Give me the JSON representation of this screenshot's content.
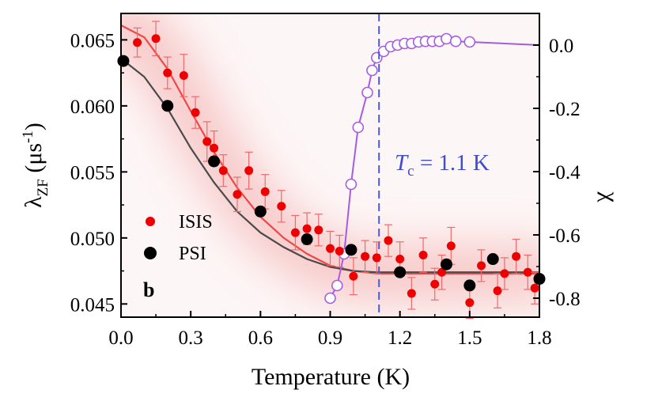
{
  "chart_data": {
    "type": "scatter",
    "title": "",
    "xlabel": "Temperature (K)",
    "ylabel_left": {
      "main": "λ",
      "sub": "ZF",
      "rest": " (μs",
      "sup": "-1",
      "close": ")"
    },
    "ylabel_right": "χ",
    "panel_label": "b",
    "xlim": [
      0.0,
      1.8
    ],
    "ylim_left": [
      0.044,
      0.067
    ],
    "ylim_right": [
      -0.86,
      0.1
    ],
    "x_ticks": [
      "0.0",
      "0.3",
      "0.6",
      "0.9",
      "1.2",
      "1.5",
      "1.8"
    ],
    "x_tick_values": [
      0.0,
      0.3,
      0.6,
      0.9,
      1.2,
      1.5,
      1.8
    ],
    "y_left_ticks": [
      "0.045",
      "0.050",
      "0.055",
      "0.060",
      "0.065"
    ],
    "y_left_tick_values": [
      0.045,
      0.05,
      0.055,
      0.06,
      0.065
    ],
    "y_right_ticks": [
      "0.0",
      "-0.2",
      "-0.4",
      "-0.6",
      "-0.8"
    ],
    "y_right_tick_values": [
      0.0,
      -0.2,
      -0.4,
      -0.6,
      -0.8
    ],
    "annotation": {
      "T": "T",
      "sub": "c",
      "text": " = 1.1 K",
      "x": 1.11
    },
    "legend": [
      {
        "label": "ISIS",
        "color": "#ee0000",
        "marker": "small-filled-circle"
      },
      {
        "label": "PSI",
        "color": "#000000",
        "marker": "large-filled-circle"
      }
    ],
    "series": [
      {
        "name": "ISIS",
        "axis": "left",
        "color": "#ee0000",
        "points": [
          {
            "x": 0.07,
            "y": 0.0648,
            "err": 0.0011
          },
          {
            "x": 0.15,
            "y": 0.0651,
            "err": 0.0013
          },
          {
            "x": 0.2,
            "y": 0.0625,
            "err": 0.0012
          },
          {
            "x": 0.27,
            "y": 0.0623,
            "err": 0.0016
          },
          {
            "x": 0.32,
            "y": 0.0595,
            "err": 0.0012
          },
          {
            "x": 0.37,
            "y": 0.0573,
            "err": 0.0015
          },
          {
            "x": 0.4,
            "y": 0.0568,
            "err": 0.0013
          },
          {
            "x": 0.44,
            "y": 0.0551,
            "err": 0.0012
          },
          {
            "x": 0.5,
            "y": 0.0533,
            "err": 0.0013
          },
          {
            "x": 0.55,
            "y": 0.0551,
            "err": 0.0014
          },
          {
            "x": 0.62,
            "y": 0.0535,
            "err": 0.0013
          },
          {
            "x": 0.69,
            "y": 0.0524,
            "err": 0.0012
          },
          {
            "x": 0.75,
            "y": 0.0504,
            "err": 0.0013
          },
          {
            "x": 0.8,
            "y": 0.0507,
            "err": 0.0012
          },
          {
            "x": 0.85,
            "y": 0.0506,
            "err": 0.0012
          },
          {
            "x": 0.9,
            "y": 0.0492,
            "err": 0.0013
          },
          {
            "x": 0.94,
            "y": 0.049,
            "err": 0.0012
          },
          {
            "x": 1.0,
            "y": 0.0471,
            "err": 0.0014
          },
          {
            "x": 1.05,
            "y": 0.0486,
            "err": 0.0012
          },
          {
            "x": 1.1,
            "y": 0.0485,
            "err": 0.0012
          },
          {
            "x": 1.15,
            "y": 0.0498,
            "err": 0.0012
          },
          {
            "x": 1.2,
            "y": 0.0484,
            "err": 0.0013
          },
          {
            "x": 1.25,
            "y": 0.0458,
            "err": 0.0012
          },
          {
            "x": 1.3,
            "y": 0.0487,
            "err": 0.0013
          },
          {
            "x": 1.35,
            "y": 0.0465,
            "err": 0.0012
          },
          {
            "x": 1.38,
            "y": 0.0474,
            "err": 0.0013
          },
          {
            "x": 1.42,
            "y": 0.0494,
            "err": 0.0014
          },
          {
            "x": 1.5,
            "y": 0.0451,
            "err": 0.0012
          },
          {
            "x": 1.55,
            "y": 0.0479,
            "err": 0.0012
          },
          {
            "x": 1.62,
            "y": 0.046,
            "err": 0.0013
          },
          {
            "x": 1.65,
            "y": 0.0473,
            "err": 0.0012
          },
          {
            "x": 1.7,
            "y": 0.0486,
            "err": 0.0013
          },
          {
            "x": 1.75,
            "y": 0.0474,
            "err": 0.0013
          },
          {
            "x": 1.78,
            "y": 0.0462,
            "err": 0.0012
          }
        ]
      },
      {
        "name": "PSI",
        "axis": "left",
        "color": "#000000",
        "points": [
          {
            "x": 0.01,
            "y": 0.0634,
            "err": 0.0003
          },
          {
            "x": 0.2,
            "y": 0.06,
            "err": 0.0003
          },
          {
            "x": 0.4,
            "y": 0.0558,
            "err": 0.0003
          },
          {
            "x": 0.6,
            "y": 0.052,
            "err": 0.0003
          },
          {
            "x": 0.8,
            "y": 0.0499,
            "err": 0.0003
          },
          {
            "x": 0.99,
            "y": 0.0491,
            "err": 0.0003
          },
          {
            "x": 1.2,
            "y": 0.0474,
            "err": 0.0003
          },
          {
            "x": 1.4,
            "y": 0.048,
            "err": 0.0003
          },
          {
            "x": 1.5,
            "y": 0.0464,
            "err": 0.0003
          },
          {
            "x": 1.6,
            "y": 0.0484,
            "err": 0.0003
          },
          {
            "x": 1.8,
            "y": 0.0469,
            "err": 0.0003
          }
        ]
      },
      {
        "name": "χ",
        "axis": "right",
        "color": "#a55de0",
        "points": [
          {
            "x": 0.9,
            "y": -0.8
          },
          {
            "x": 0.93,
            "y": -0.76
          },
          {
            "x": 0.96,
            "y": -0.66
          },
          {
            "x": 0.99,
            "y": -0.44
          },
          {
            "x": 1.02,
            "y": -0.26
          },
          {
            "x": 1.06,
            "y": -0.15
          },
          {
            "x": 1.08,
            "y": -0.08
          },
          {
            "x": 1.1,
            "y": -0.04
          },
          {
            "x": 1.13,
            "y": -0.02
          },
          {
            "x": 1.16,
            "y": -0.005
          },
          {
            "x": 1.19,
            "y": 0.0
          },
          {
            "x": 1.22,
            "y": 0.005
          },
          {
            "x": 1.25,
            "y": 0.005
          },
          {
            "x": 1.28,
            "y": 0.01
          },
          {
            "x": 1.31,
            "y": 0.012
          },
          {
            "x": 1.34,
            "y": 0.012
          },
          {
            "x": 1.37,
            "y": 0.012
          },
          {
            "x": 1.4,
            "y": 0.02
          },
          {
            "x": 1.44,
            "y": 0.012
          },
          {
            "x": 1.5,
            "y": 0.01
          }
        ],
        "line_x_end": 1.8,
        "line_y_end": 0.0
      }
    ],
    "fits": [
      {
        "name": "ISIS fit",
        "color": "#ee4848",
        "points": [
          {
            "x": 0.0,
            "y": 0.0661
          },
          {
            "x": 0.1,
            "y": 0.0652
          },
          {
            "x": 0.2,
            "y": 0.0628
          },
          {
            "x": 0.3,
            "y": 0.0596
          },
          {
            "x": 0.4,
            "y": 0.0565
          },
          {
            "x": 0.5,
            "y": 0.0538
          },
          {
            "x": 0.6,
            "y": 0.0516
          },
          {
            "x": 0.7,
            "y": 0.05
          },
          {
            "x": 0.8,
            "y": 0.0488
          },
          {
            "x": 0.9,
            "y": 0.0479
          },
          {
            "x": 1.0,
            "y": 0.0475
          },
          {
            "x": 1.1,
            "y": 0.0473
          },
          {
            "x": 1.2,
            "y": 0.0473
          },
          {
            "x": 1.8,
            "y": 0.0473
          }
        ]
      },
      {
        "name": "PSI fit",
        "color": "#4a4a4a",
        "points": [
          {
            "x": 0.0,
            "y": 0.0636
          },
          {
            "x": 0.1,
            "y": 0.0622
          },
          {
            "x": 0.2,
            "y": 0.0598
          },
          {
            "x": 0.3,
            "y": 0.0568
          },
          {
            "x": 0.4,
            "y": 0.0542
          },
          {
            "x": 0.5,
            "y": 0.052
          },
          {
            "x": 0.6,
            "y": 0.0504
          },
          {
            "x": 0.7,
            "y": 0.0493
          },
          {
            "x": 0.8,
            "y": 0.0484
          },
          {
            "x": 0.9,
            "y": 0.0478
          },
          {
            "x": 1.0,
            "y": 0.0475
          },
          {
            "x": 1.1,
            "y": 0.0474
          },
          {
            "x": 1.2,
            "y": 0.0474
          },
          {
            "x": 1.8,
            "y": 0.0474
          }
        ]
      }
    ],
    "grid": false,
    "legend_position": "lower-left"
  }
}
